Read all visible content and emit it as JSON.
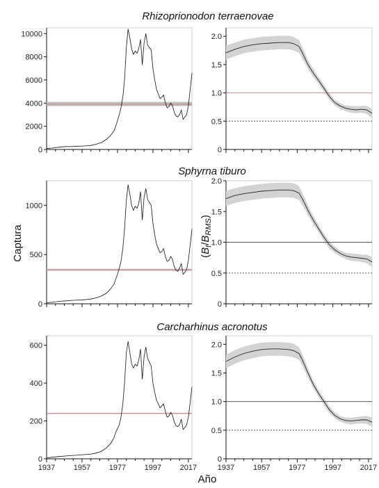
{
  "labels": {
    "ylabel_left": "Captura",
    "ylabel_right_B": "B",
    "ylabel_right_t": "t",
    "ylabel_right_slash": "/",
    "ylabel_right_RMS": "RMS",
    "xlabel": "Año"
  },
  "colors": {
    "catch_line": "#111111",
    "ref_line": "#d4898f",
    "band": "#bdbdbd",
    "ribbon": "#d3d3d3",
    "dotted": "#555555",
    "axis": "#111111"
  },
  "chart_data": [
    {
      "type": "line",
      "title": "Rhizoprionodon terraenovae",
      "panel": "catch",
      "ylim": [
        0,
        10500
      ],
      "yticks": [
        0,
        2000,
        4000,
        6000,
        8000,
        10000
      ],
      "xlim": [
        1937,
        2019
      ],
      "xticks": [
        1937,
        1957,
        1977,
        1997,
        2017
      ],
      "x": [
        1937,
        1940,
        1944,
        1948,
        1952,
        1955,
        1958,
        1962,
        1965,
        1968,
        1971,
        1973,
        1975,
        1976,
        1977,
        1978,
        1979,
        1980,
        1981,
        1982,
        1983,
        1984,
        1985,
        1986,
        1987,
        1988,
        1989,
        1990,
        1991,
        1992,
        1993,
        1994,
        1995,
        1996,
        1997,
        1998,
        1999,
        2000,
        2001,
        2002,
        2003,
        2004,
        2005,
        2006,
        2007,
        2008,
        2009,
        2010,
        2011,
        2012,
        2013,
        2014,
        2015,
        2016,
        2017,
        2018,
        2019
      ],
      "values": [
        80,
        120,
        200,
        250,
        260,
        280,
        300,
        350,
        450,
        600,
        900,
        1200,
        1600,
        2000,
        2500,
        3000,
        3600,
        4500,
        6000,
        8800,
        10400,
        9600,
        8700,
        8200,
        8500,
        8300,
        8700,
        9500,
        7300,
        9200,
        10000,
        9000,
        8800,
        8600,
        7000,
        6000,
        5200,
        4800,
        4400,
        4500,
        4700,
        4000,
        3600,
        3700,
        4000,
        3800,
        3200,
        2900,
        2800,
        3000,
        3400,
        2600,
        2800,
        3000,
        3800,
        5200,
        6600
      ],
      "ref": {
        "value": 3900,
        "band": [
          3750,
          4100
        ]
      }
    },
    {
      "type": "line",
      "title": "Rhizoprionodon terraenovae",
      "panel": "ratio",
      "ylim": [
        0,
        2.15
      ],
      "yticks": [
        0,
        0.5,
        1.0,
        1.5,
        2.0
      ],
      "xlim": [
        1937,
        2019
      ],
      "xticks": [
        1937,
        1957,
        1977,
        1997,
        2017
      ],
      "x": [
        1937,
        1942,
        1947,
        1952,
        1957,
        1962,
        1967,
        1972,
        1975,
        1978,
        1980,
        1983,
        1986,
        1989,
        1992,
        1995,
        1998,
        2001,
        2004,
        2007,
        2010,
        2013,
        2016,
        2019
      ],
      "values": [
        1.71,
        1.77,
        1.82,
        1.85,
        1.87,
        1.88,
        1.89,
        1.89,
        1.87,
        1.82,
        1.7,
        1.5,
        1.35,
        1.22,
        1.08,
        0.94,
        0.83,
        0.77,
        0.73,
        0.71,
        0.7,
        0.71,
        0.7,
        0.64
      ],
      "ribbon": [
        0.12,
        0.12,
        0.12,
        0.12,
        0.12,
        0.12,
        0.12,
        0.12,
        0.12,
        0.11,
        0.1,
        0.08,
        0.07,
        0.06,
        0.06,
        0.06,
        0.05,
        0.05,
        0.05,
        0.06,
        0.06,
        0.06,
        0.07,
        0.08
      ],
      "ref_line": 1.0,
      "dotted_line": 0.5
    },
    {
      "type": "line",
      "title": "Sphyrna tiburo",
      "panel": "catch",
      "ylim": [
        0,
        1250
      ],
      "yticks": [
        0,
        500,
        1000
      ],
      "xlim": [
        1937,
        2019
      ],
      "xticks": [
        1937,
        1957,
        1977,
        1997,
        2017
      ],
      "x": [
        1937,
        1940,
        1944,
        1948,
        1952,
        1955,
        1958,
        1962,
        1965,
        1968,
        1971,
        1973,
        1975,
        1976,
        1977,
        1978,
        1979,
        1980,
        1981,
        1982,
        1983,
        1984,
        1985,
        1986,
        1987,
        1988,
        1989,
        1990,
        1991,
        1992,
        1993,
        1994,
        1995,
        1996,
        1997,
        1998,
        1999,
        2000,
        2001,
        2002,
        2003,
        2004,
        2005,
        2006,
        2007,
        2008,
        2009,
        2010,
        2011,
        2012,
        2013,
        2014,
        2015,
        2016,
        2017,
        2018,
        2019
      ],
      "values": [
        10,
        15,
        25,
        30,
        35,
        38,
        40,
        48,
        60,
        80,
        110,
        150,
        200,
        250,
        300,
        360,
        430,
        560,
        760,
        1050,
        1210,
        1110,
        1000,
        950,
        990,
        970,
        1020,
        1140,
        850,
        1080,
        1170,
        1060,
        1030,
        1000,
        820,
        700,
        610,
        560,
        520,
        530,
        560,
        480,
        430,
        440,
        480,
        450,
        380,
        340,
        330,
        360,
        410,
        300,
        320,
        350,
        440,
        600,
        760
      ],
      "ref": {
        "value": 345,
        "band": [
          335,
          355
        ]
      }
    },
    {
      "type": "line",
      "title": "Sphyrna tiburo",
      "panel": "ratio",
      "ylim": [
        0,
        2.0
      ],
      "yticks": [
        0,
        0.5,
        1.0,
        1.5,
        2.0
      ],
      "xlim": [
        1937,
        2019
      ],
      "xticks": [
        1937,
        1957,
        1977,
        1997,
        2017
      ],
      "x": [
        1937,
        1942,
        1947,
        1952,
        1957,
        1962,
        1967,
        1972,
        1975,
        1978,
        1980,
        1983,
        1986,
        1989,
        1992,
        1995,
        1998,
        2001,
        2004,
        2007,
        2010,
        2013,
        2016,
        2019
      ],
      "values": [
        1.71,
        1.76,
        1.79,
        1.81,
        1.83,
        1.84,
        1.85,
        1.85,
        1.84,
        1.8,
        1.7,
        1.52,
        1.36,
        1.22,
        1.08,
        0.96,
        0.88,
        0.82,
        0.78,
        0.76,
        0.75,
        0.74,
        0.73,
        0.68
      ],
      "ribbon": [
        0.12,
        0.12,
        0.12,
        0.12,
        0.12,
        0.12,
        0.12,
        0.12,
        0.12,
        0.11,
        0.1,
        0.08,
        0.07,
        0.06,
        0.06,
        0.06,
        0.05,
        0.05,
        0.05,
        0.06,
        0.06,
        0.06,
        0.07,
        0.08
      ],
      "ref_line": 1.0,
      "dotted_line": 0.5
    },
    {
      "type": "line",
      "title": "Carcharhinus acronotus",
      "panel": "catch",
      "ylim": [
        0,
        650
      ],
      "yticks": [
        0,
        200,
        400,
        600
      ],
      "xlim": [
        1937,
        2019
      ],
      "xticks": [
        1937,
        1957,
        1977,
        1997,
        2017
      ],
      "x": [
        1937,
        1940,
        1944,
        1948,
        1952,
        1955,
        1958,
        1962,
        1965,
        1968,
        1971,
        1973,
        1975,
        1976,
        1977,
        1978,
        1979,
        1980,
        1981,
        1982,
        1983,
        1984,
        1985,
        1986,
        1987,
        1988,
        1989,
        1990,
        1991,
        1992,
        1993,
        1994,
        1995,
        1996,
        1997,
        1998,
        1999,
        2000,
        2001,
        2002,
        2003,
        2004,
        2005,
        2006,
        2007,
        2008,
        2009,
        2010,
        2011,
        2012,
        2013,
        2014,
        2015,
        2016,
        2017,
        2018,
        2019
      ],
      "values": [
        5,
        8,
        12,
        15,
        18,
        20,
        22,
        25,
        30,
        40,
        60,
        80,
        110,
        140,
        160,
        180,
        220,
        290,
        400,
        560,
        620,
        560,
        500,
        480,
        500,
        490,
        520,
        580,
        420,
        540,
        590,
        530,
        510,
        490,
        400,
        350,
        310,
        290,
        270,
        280,
        290,
        250,
        220,
        225,
        245,
        230,
        195,
        175,
        170,
        180,
        210,
        155,
        165,
        180,
        220,
        300,
        380
      ],
      "ref": {
        "value": 240,
        "band": [
          237,
          243
        ]
      }
    },
    {
      "type": "line",
      "title": "Carcharhinus acronotus",
      "panel": "ratio",
      "ylim": [
        0,
        2.15
      ],
      "yticks": [
        0,
        0.5,
        1.0,
        1.5,
        2.0
      ],
      "xlim": [
        1937,
        2019
      ],
      "xticks": [
        1937,
        1957,
        1977,
        1997,
        2017
      ],
      "x": [
        1937,
        1942,
        1947,
        1952,
        1957,
        1962,
        1967,
        1972,
        1975,
        1978,
        1980,
        1983,
        1986,
        1989,
        1992,
        1995,
        1998,
        2001,
        2004,
        2007,
        2010,
        2013,
        2016,
        2019
      ],
      "values": [
        1.7,
        1.78,
        1.84,
        1.88,
        1.91,
        1.92,
        1.92,
        1.91,
        1.89,
        1.84,
        1.72,
        1.5,
        1.3,
        1.14,
        1.0,
        0.86,
        0.76,
        0.7,
        0.67,
        0.66,
        0.67,
        0.68,
        0.68,
        0.64
      ],
      "ribbon": [
        0.12,
        0.12,
        0.12,
        0.12,
        0.12,
        0.12,
        0.12,
        0.12,
        0.12,
        0.11,
        0.1,
        0.08,
        0.07,
        0.06,
        0.06,
        0.06,
        0.05,
        0.05,
        0.05,
        0.06,
        0.06,
        0.06,
        0.07,
        0.08
      ],
      "ref_line": 1.0,
      "dotted_line": 0.5
    }
  ]
}
